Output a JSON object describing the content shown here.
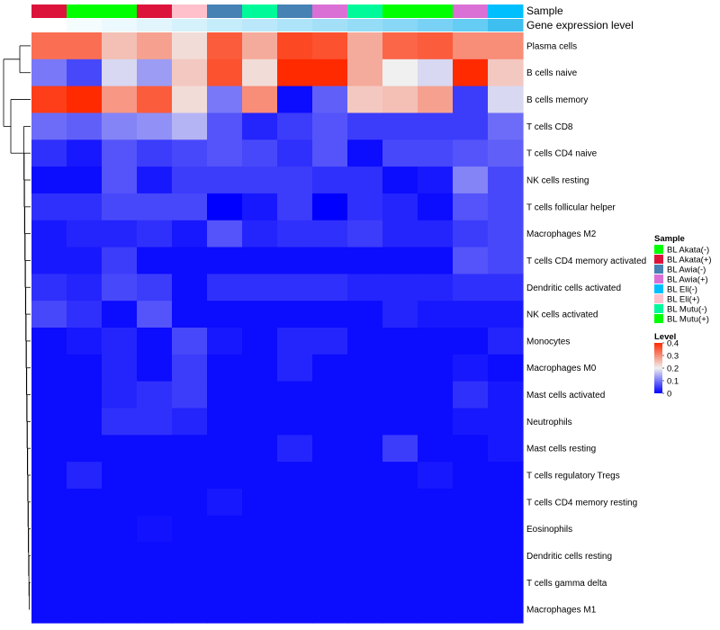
{
  "chart_data": {
    "type": "heatmap",
    "title": "",
    "annotation_labels": [
      "Sample",
      "Gene expression level"
    ],
    "columns": [
      {
        "sample": "BL Akata(+)",
        "expr": 0.0
      },
      {
        "sample": "BL Akata(-)",
        "expr": 0.05
      },
      {
        "sample": "BL Akata(-)",
        "expr": 0.1
      },
      {
        "sample": "BL Akata(+)",
        "expr": 0.15
      },
      {
        "sample": "BL Eli(+)",
        "expr": 0.22
      },
      {
        "sample": "BL Awia(-)",
        "expr": 0.3
      },
      {
        "sample": "BL Mutu(-)",
        "expr": 0.36
      },
      {
        "sample": "BL Awia(-)",
        "expr": 0.42
      },
      {
        "sample": "BL Awia(+)",
        "expr": 0.48
      },
      {
        "sample": "BL Mutu(-)",
        "expr": 0.55
      },
      {
        "sample": "BL Mutu(+)",
        "expr": 0.62
      },
      {
        "sample": "BL Mutu(+)",
        "expr": 0.7
      },
      {
        "sample": "BL Awia(+)",
        "expr": 0.8
      },
      {
        "sample": "BL Eli(-)",
        "expr": 1.0
      }
    ],
    "rows": [
      "Plasma cells",
      "B cells naive",
      "B cells memory",
      "T cells CD8",
      "T cells CD4 naive",
      "NK cells resting",
      "T cells follicular helper",
      "Macrophages M2",
      "T cells CD4 memory activated",
      "Dendritic cells activated",
      "NK cells activated",
      "Monocytes",
      "Macrophages M0",
      "Mast cells activated",
      "Neutrophils",
      "Mast cells resting",
      "T cells regulatory  Tregs",
      "T cells CD4 memory resting",
      "Eosinophils",
      "Dendritic cells resting",
      "T cells gamma delta",
      "Macrophages M1"
    ],
    "values": [
      [
        0.33,
        0.33,
        0.25,
        0.28,
        0.22,
        0.35,
        0.27,
        0.37,
        0.36,
        0.27,
        0.34,
        0.35,
        0.3,
        0.3
      ],
      [
        0.1,
        0.06,
        0.18,
        0.13,
        0.24,
        0.36,
        0.22,
        0.4,
        0.4,
        0.27,
        0.2,
        0.18,
        0.4,
        0.24
      ],
      [
        0.38,
        0.4,
        0.29,
        0.35,
        0.22,
        0.1,
        0.3,
        0.01,
        0.08,
        0.24,
        0.25,
        0.28,
        0.05,
        0.18
      ],
      [
        0.09,
        0.08,
        0.11,
        0.12,
        0.15,
        0.07,
        0.03,
        0.05,
        0.07,
        0.05,
        0.05,
        0.05,
        0.05,
        0.09
      ],
      [
        0.04,
        0.02,
        0.07,
        0.05,
        0.06,
        0.07,
        0.06,
        0.04,
        0.07,
        0.01,
        0.06,
        0.06,
        0.07,
        0.08
      ],
      [
        0.01,
        0.01,
        0.07,
        0.02,
        0.05,
        0.05,
        0.05,
        0.05,
        0.04,
        0.04,
        0.01,
        0.02,
        0.11,
        0.06
      ],
      [
        0.04,
        0.04,
        0.06,
        0.06,
        0.06,
        0.0,
        0.02,
        0.05,
        0.0,
        0.04,
        0.03,
        0.01,
        0.07,
        0.06
      ],
      [
        0.02,
        0.03,
        0.03,
        0.04,
        0.02,
        0.07,
        0.03,
        0.04,
        0.04,
        0.05,
        0.03,
        0.03,
        0.05,
        0.06
      ],
      [
        0.02,
        0.02,
        0.05,
        0.01,
        0.01,
        0.01,
        0.01,
        0.01,
        0.01,
        0.01,
        0.01,
        0.01,
        0.07,
        0.06
      ],
      [
        0.04,
        0.03,
        0.06,
        0.05,
        0.01,
        0.04,
        0.04,
        0.04,
        0.04,
        0.03,
        0.03,
        0.03,
        0.04,
        0.04
      ],
      [
        0.06,
        0.04,
        0.01,
        0.07,
        0.01,
        0.01,
        0.01,
        0.01,
        0.01,
        0.01,
        0.03,
        0.02,
        0.02,
        0.02
      ],
      [
        0.01,
        0.02,
        0.03,
        0.01,
        0.06,
        0.02,
        0.01,
        0.03,
        0.03,
        0.01,
        0.01,
        0.01,
        0.01,
        0.03
      ],
      [
        0.01,
        0.01,
        0.03,
        0.01,
        0.05,
        0.01,
        0.01,
        0.03,
        0.01,
        0.01,
        0.01,
        0.01,
        0.02,
        0.01
      ],
      [
        0.01,
        0.01,
        0.03,
        0.04,
        0.05,
        0.01,
        0.01,
        0.01,
        0.01,
        0.01,
        0.01,
        0.01,
        0.04,
        0.02
      ],
      [
        0.01,
        0.01,
        0.04,
        0.04,
        0.03,
        0.01,
        0.01,
        0.01,
        0.01,
        0.01,
        0.01,
        0.01,
        0.02,
        0.02
      ],
      [
        0.01,
        0.01,
        0.01,
        0.01,
        0.01,
        0.01,
        0.01,
        0.03,
        0.01,
        0.01,
        0.05,
        0.01,
        0.01,
        0.02
      ],
      [
        0.01,
        0.03,
        0.01,
        0.01,
        0.01,
        0.01,
        0.01,
        0.01,
        0.01,
        0.01,
        0.01,
        0.02,
        0.01,
        0.01
      ],
      [
        0.01,
        0.01,
        0.01,
        0.01,
        0.01,
        0.02,
        0.01,
        0.01,
        0.01,
        0.01,
        0.01,
        0.01,
        0.01,
        0.01
      ],
      [
        0.01,
        0.01,
        0.01,
        0.015,
        0.01,
        0.01,
        0.01,
        0.01,
        0.01,
        0.01,
        0.01,
        0.01,
        0.01,
        0.01
      ],
      [
        0.01,
        0.01,
        0.01,
        0.01,
        0.01,
        0.01,
        0.01,
        0.01,
        0.01,
        0.01,
        0.01,
        0.01,
        0.01,
        0.01
      ],
      [
        0.01,
        0.01,
        0.01,
        0.01,
        0.01,
        0.01,
        0.01,
        0.01,
        0.01,
        0.01,
        0.01,
        0.01,
        0.01,
        0.01
      ],
      [
        0.01,
        0.01,
        0.01,
        0.01,
        0.01,
        0.01,
        0.01,
        0.01,
        0.01,
        0.01,
        0.01,
        0.01,
        0.01,
        0.01
      ]
    ],
    "color_scale": {
      "domain": [
        0,
        0.2,
        0.4
      ],
      "colors": [
        "#0000FF",
        "#F0F0F0",
        "#FF2A00"
      ]
    },
    "expr_scale": {
      "domain": [
        0,
        1
      ],
      "colors": [
        "#FFFFFF",
        "#3FBFF0"
      ]
    },
    "legend_sample": {
      "title": "Sample",
      "entries": [
        {
          "label": "BL Akata(-)",
          "color": "#00FF00"
        },
        {
          "label": "BL Akata(+)",
          "color": "#DC143C"
        },
        {
          "label": "BL Awia(-)",
          "color": "#4682B4"
        },
        {
          "label": "BL Awia(+)",
          "color": "#DA70D6"
        },
        {
          "label": "BL Eli(-)",
          "color": "#00BFFF"
        },
        {
          "label": "BL Eli(+)",
          "color": "#FFC0CB"
        },
        {
          "label": "BL Mutu(-)",
          "color": "#00FA9A"
        },
        {
          "label": "BL Mutu(+)",
          "color": "#00FF00"
        }
      ]
    },
    "legend_level": {
      "title": "Level",
      "ticks": [
        "0.4",
        "0.3",
        "0.2",
        "0.1",
        "0"
      ],
      "tick_values": [
        0.4,
        0.3,
        0.2,
        0.1,
        0
      ]
    },
    "dendrogram": {
      "merges": [
        [
          0,
          1,
          1.0
        ],
        [
          3,
          4,
          0.16
        ],
        [
          5,
          6,
          0.14
        ],
        [
          7,
          8,
          0.12
        ],
        [
          9,
          10,
          0.11
        ],
        [
          11,
          12,
          0.09
        ],
        [
          13,
          14,
          0.08
        ],
        [
          15,
          16,
          0.07
        ],
        [
          17,
          18,
          0.05
        ],
        [
          19,
          20,
          0.04
        ],
        [
          20,
          21,
          0.03
        ]
      ]
    }
  }
}
